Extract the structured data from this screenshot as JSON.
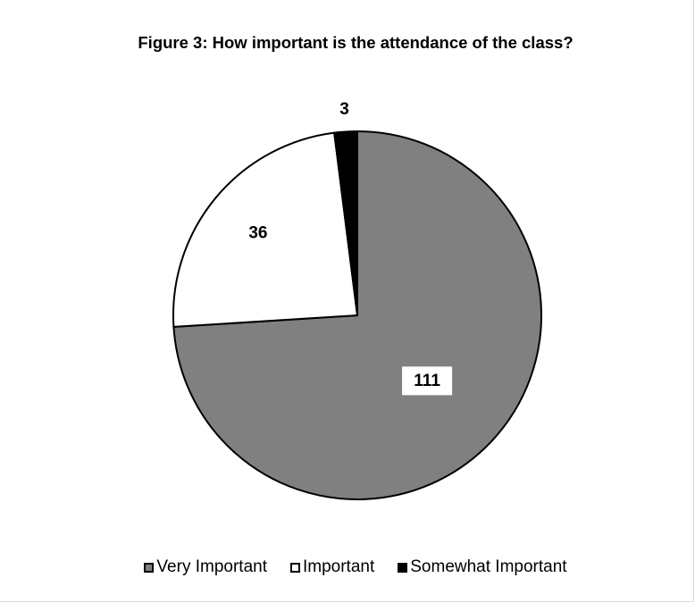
{
  "chart_data": {
    "type": "pie",
    "title": "Figure 3: How important is the attendance of the class?",
    "categories": [
      "Very Important",
      "Important",
      "Somewhat Important"
    ],
    "values": [
      111,
      36,
      3
    ],
    "data_labels": [
      "111",
      "36",
      "3"
    ],
    "colors": [
      "#808080",
      "#ffffff",
      "#000000"
    ],
    "legend_position": "bottom"
  }
}
